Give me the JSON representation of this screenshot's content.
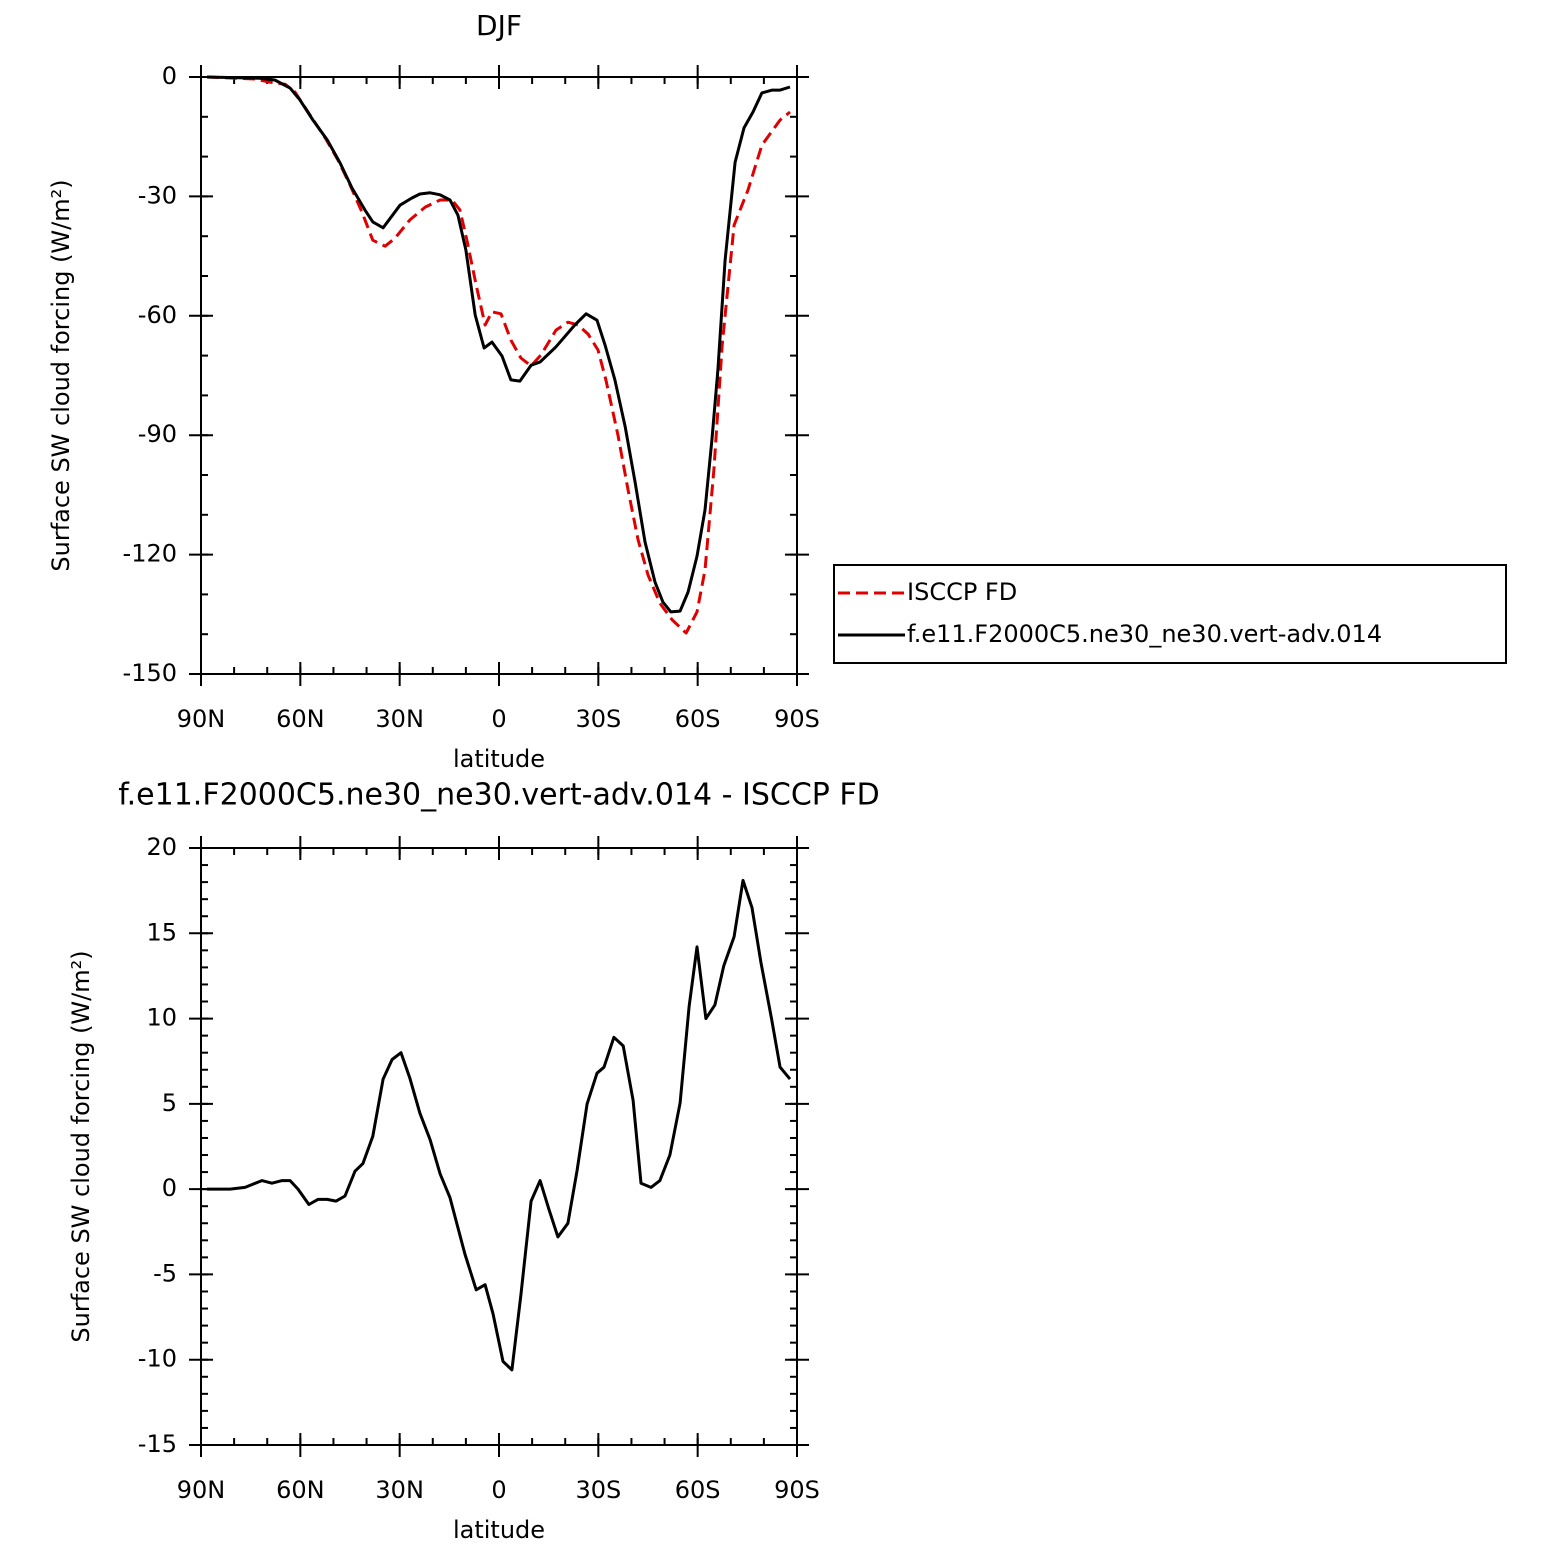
{
  "chart_data": [
    {
      "type": "line",
      "title": "DJF",
      "xlabel": "latitude",
      "ylabel": "Surface SW cloud forcing (W/m²)",
      "xlim": [
        90,
        -90
      ],
      "ylim": [
        0,
        -150
      ],
      "xticks": [
        {
          "value": 90,
          "label": "90N"
        },
        {
          "value": 60,
          "label": "60N"
        },
        {
          "value": 30,
          "label": "30N"
        },
        0,
        {
          "value": -30,
          "label": "30S"
        },
        {
          "value": -60,
          "label": "60S"
        },
        {
          "value": -90,
          "label": "90S"
        }
      ],
      "yticks": [
        0,
        -30,
        -60,
        -90,
        -120,
        -150
      ],
      "xminorticks": [
        90,
        80,
        70,
        60,
        50,
        40,
        30,
        20,
        10,
        0,
        -10,
        -20,
        -30,
        -40,
        -50,
        -60,
        -70,
        -80,
        -90
      ],
      "yminorticks": [
        0,
        -10,
        -20,
        -30,
        -40,
        -50,
        -60,
        -70,
        -80,
        -90,
        -100,
        -110,
        -120,
        -130,
        -140,
        -150
      ],
      "legend": "right",
      "series": [
        {
          "name": "ISCCP FD",
          "color": "#e00000",
          "dash": true,
          "x": [
            88.2,
            73.7,
            69.2,
            64.6,
            61.6,
            57.1,
            52.5,
            48.6,
            45.0,
            41.4,
            38.1,
            34.4,
            31.4,
            26.9,
            22.3,
            17.8,
            14.2,
            11.8,
            9.7,
            6.9,
            4.2,
            2.1,
            -0.6,
            -3.6,
            -6.6,
            -9.7,
            -12.7,
            -17.2,
            -20.8,
            -23.9,
            -26.9,
            -29.9,
            -32.3,
            -35.9,
            -39.0,
            -42.0,
            -45.0,
            -48.6,
            -52.3,
            -56.5,
            -59.8,
            -62.2,
            -64.9,
            -67.4,
            -71.0,
            -75.2,
            -79.4,
            -84.9,
            -87.9
          ],
          "values": [
            0,
            -0.5,
            -1.3,
            -1.8,
            -3.8,
            -9.5,
            -15.3,
            -20.9,
            -27.1,
            -33.9,
            -41.0,
            -42.5,
            -40.5,
            -35.9,
            -32.7,
            -30.9,
            -30.9,
            -33.4,
            -41.0,
            -52.3,
            -62.3,
            -59.0,
            -59.5,
            -66.1,
            -70.6,
            -72.6,
            -69.8,
            -63.6,
            -61.6,
            -62.3,
            -64.6,
            -68.6,
            -76.1,
            -89.9,
            -103.8,
            -116.3,
            -125.1,
            -132.2,
            -136.4,
            -139.7,
            -134.4,
            -123.9,
            -98.7,
            -67.3,
            -37.2,
            -28.4,
            -17.1,
            -10.8,
            -8.8
          ]
        },
        {
          "name": "f.e11.F2000C5.ne30_ne30.vert-adv.014",
          "color": "#000000",
          "dash": false,
          "x": [
            88.2,
            72.2,
            67.7,
            63.1,
            60.1,
            56.2,
            51.9,
            48.0,
            44.4,
            40.5,
            38.1,
            35.0,
            29.9,
            26.3,
            23.9,
            20.8,
            17.8,
            14.8,
            12.4,
            10.0,
            7.2,
            4.5,
            2.1,
            -0.9,
            -3.6,
            -6.3,
            -9.7,
            -12.4,
            -17.2,
            -22.9,
            -26.3,
            -29.6,
            -32.0,
            -35.0,
            -38.1,
            -41.1,
            -44.1,
            -47.1,
            -49.5,
            -51.9,
            -54.7,
            -57.1,
            -59.8,
            -62.2,
            -64.3,
            -66.1,
            -68.3,
            -71.3,
            -74.0,
            -76.7,
            -79.4,
            -82.5,
            -84.9,
            -87.9
          ],
          "values": [
            0,
            -0.3,
            -0.75,
            -2.8,
            -5.8,
            -10.8,
            -15.8,
            -21.6,
            -27.9,
            -33.4,
            -36.4,
            -37.9,
            -32.2,
            -30.4,
            -29.4,
            -29.1,
            -29.6,
            -30.9,
            -34.7,
            -43.5,
            -59.8,
            -68.1,
            -66.6,
            -70.1,
            -76.1,
            -76.4,
            -72.4,
            -71.6,
            -67.8,
            -62.3,
            -59.5,
            -61.1,
            -67.3,
            -76.1,
            -87.9,
            -101.8,
            -116.8,
            -126.9,
            -131.9,
            -134.4,
            -134.2,
            -129.4,
            -120.4,
            -108.8,
            -91.2,
            -73.6,
            -46.0,
            -21.4,
            -12.8,
            -8.8,
            -4.0,
            -3.3,
            -3.3,
            -2.5
          ]
        }
      ]
    },
    {
      "type": "line",
      "title": "f.e11.F2000C5.ne30_ne30.vert-adv.014 - ISCCP FD",
      "xlabel": "latitude",
      "ylabel": "Surface SW cloud forcing (W/m²)",
      "xlim": [
        90,
        -90
      ],
      "ylim": [
        20,
        -15
      ],
      "xticks": [
        {
          "value": 90,
          "label": "90N"
        },
        {
          "value": 60,
          "label": "60N"
        },
        {
          "value": 30,
          "label": "30N"
        },
        0,
        {
          "value": -30,
          "label": "30S"
        },
        {
          "value": -60,
          "label": "60S"
        },
        {
          "value": -90,
          "label": "90S"
        }
      ],
      "yticks": [
        20,
        15,
        10,
        5,
        0,
        -5,
        -10,
        -15
      ],
      "xminorticks": [
        90,
        80,
        70,
        60,
        50,
        40,
        30,
        20,
        10,
        0,
        -10,
        -20,
        -30,
        -40,
        -50,
        -60,
        -70,
        -80,
        -90
      ],
      "yminorticks": [
        20,
        19,
        18,
        17,
        16,
        15,
        14,
        13,
        12,
        11,
        10,
        9,
        8,
        7,
        6,
        5,
        4,
        3,
        2,
        1,
        0,
        -1,
        -2,
        -3,
        -4,
        -5,
        -6,
        -7,
        -8,
        -9,
        -10,
        -11,
        -12,
        -13,
        -14,
        -15
      ],
      "series": [
        {
          "color": "#000000",
          "dash": false,
          "x": [
            88.2,
            81.2,
            76.7,
            71.6,
            68.6,
            65.5,
            63.1,
            60.7,
            57.4,
            54.7,
            51.9,
            49.2,
            46.5,
            43.5,
            41.1,
            38.1,
            35.0,
            32.3,
            29.6,
            26.9,
            23.9,
            20.8,
            17.8,
            14.8,
            10.3,
            6.9,
            4.2,
            1.8,
            -1.2,
            -3.9,
            -6.6,
            -9.7,
            -12.4,
            -15.1,
            -17.8,
            -20.8,
            -23.6,
            -26.6,
            -29.6,
            -31.7,
            -34.7,
            -37.5,
            -40.5,
            -42.9,
            -45.9,
            -48.6,
            -51.6,
            -54.7,
            -57.4,
            -59.8,
            -62.5,
            -65.2,
            -67.9,
            -71.0,
            -73.7,
            -76.4,
            -79.1,
            -82.2,
            -84.9,
            -87.9
          ],
          "values": [
            0,
            0,
            0.1,
            0.5,
            0.35,
            0.5,
            0.5,
            0,
            -0.9,
            -0.6,
            -0.6,
            -0.7,
            -0.4,
            1.05,
            1.5,
            3.1,
            6.45,
            7.6,
            8.0,
            6.5,
            4.45,
            2.9,
            0.9,
            -0.5,
            -3.8,
            -5.9,
            -5.6,
            -7.3,
            -10.1,
            -10.6,
            -6.2,
            -0.7,
            0.5,
            -1.2,
            -2.8,
            -2.0,
            1.1,
            5.0,
            6.8,
            7.15,
            8.9,
            8.4,
            5.2,
            0.35,
            0.1,
            0.5,
            2.0,
            5.05,
            10.7,
            14.2,
            10.0,
            10.8,
            13.1,
            14.8,
            18.1,
            16.5,
            13.3,
            10.1,
            7.15,
            6.45
          ]
        }
      ]
    }
  ]
}
